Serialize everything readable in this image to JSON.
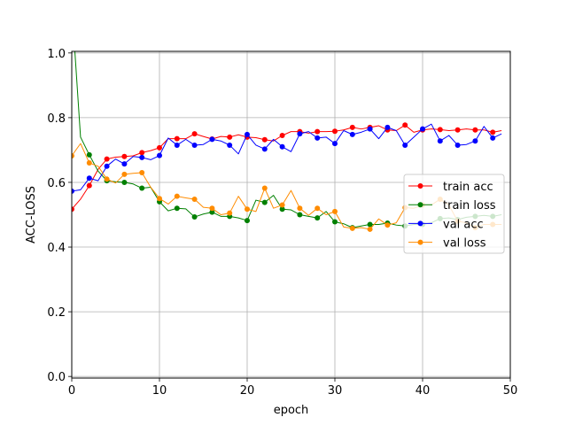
{
  "chart_data": {
    "type": "line",
    "title": "",
    "xlabel": "epoch",
    "ylabel": "ACC-LOSS",
    "xlim": [
      0,
      50
    ],
    "ylim": [
      -0.005,
      1.005
    ],
    "xticks": [
      0,
      10,
      20,
      30,
      40,
      50
    ],
    "yticks": [
      0.0,
      0.2,
      0.4,
      0.6,
      0.8,
      1.0
    ],
    "xtick_labels": [
      "0",
      "10",
      "20",
      "30",
      "40",
      "50"
    ],
    "ytick_labels": [
      "0.0",
      "0.2",
      "0.4",
      "0.6",
      "0.8",
      "1.0"
    ],
    "grid": true,
    "legend_position": "center-right",
    "x": [
      0,
      1,
      2,
      3,
      4,
      5,
      6,
      7,
      8,
      9,
      10,
      11,
      12,
      13,
      14,
      15,
      16,
      17,
      18,
      19,
      20,
      21,
      22,
      23,
      24,
      25,
      26,
      27,
      28,
      29,
      30,
      31,
      32,
      33,
      34,
      35,
      36,
      37,
      38,
      39,
      40,
      41,
      42,
      43,
      44,
      45,
      46,
      47,
      48,
      49
    ],
    "series": [
      {
        "name": "train acc",
        "color": "#ff0000",
        "values": [
          0.517,
          0.548,
          0.59,
          0.64,
          0.672,
          0.678,
          0.68,
          0.682,
          0.692,
          0.698,
          0.707,
          0.735,
          0.735,
          0.735,
          0.75,
          0.742,
          0.734,
          0.742,
          0.74,
          0.747,
          0.74,
          0.738,
          0.732,
          0.728,
          0.745,
          0.757,
          0.757,
          0.752,
          0.757,
          0.757,
          0.758,
          0.762,
          0.77,
          0.765,
          0.77,
          0.775,
          0.762,
          0.76,
          0.777,
          0.755,
          0.762,
          0.765,
          0.763,
          0.76,
          0.762,
          0.765,
          0.762,
          0.762,
          0.755,
          0.76
        ]
      },
      {
        "name": "train loss",
        "color": "#008000",
        "values": [
          1.15,
          0.74,
          0.685,
          0.635,
          0.605,
          0.602,
          0.6,
          0.595,
          0.582,
          0.585,
          0.54,
          0.512,
          0.52,
          0.518,
          0.493,
          0.502,
          0.508,
          0.495,
          0.495,
          0.49,
          0.482,
          0.545,
          0.538,
          0.56,
          0.517,
          0.515,
          0.5,
          0.495,
          0.49,
          0.51,
          0.478,
          0.472,
          0.46,
          0.465,
          0.47,
          0.47,
          0.474,
          0.468,
          0.465,
          0.47,
          0.47,
          0.475,
          0.488,
          0.49,
          0.485,
          0.492,
          0.495,
          0.498,
          0.495,
          0.5
        ]
      },
      {
        "name": "val acc",
        "color": "#0000ff",
        "values": [
          0.573,
          0.577,
          0.613,
          0.605,
          0.65,
          0.672,
          0.657,
          0.68,
          0.677,
          0.67,
          0.683,
          0.737,
          0.715,
          0.733,
          0.715,
          0.717,
          0.733,
          0.728,
          0.715,
          0.688,
          0.748,
          0.715,
          0.703,
          0.733,
          0.71,
          0.695,
          0.75,
          0.757,
          0.737,
          0.74,
          0.72,
          0.76,
          0.748,
          0.755,
          0.765,
          0.735,
          0.77,
          0.76,
          0.715,
          0.74,
          0.765,
          0.78,
          0.728,
          0.745,
          0.715,
          0.717,
          0.728,
          0.773,
          0.737,
          0.75
        ]
      },
      {
        "name": "val loss",
        "color": "#ff8c00",
        "values": [
          0.682,
          0.72,
          0.66,
          0.65,
          0.61,
          0.598,
          0.625,
          0.628,
          0.63,
          0.585,
          0.55,
          0.533,
          0.557,
          0.552,
          0.548,
          0.523,
          0.52,
          0.5,
          0.505,
          0.557,
          0.517,
          0.51,
          0.582,
          0.52,
          0.53,
          0.575,
          0.52,
          0.498,
          0.52,
          0.5,
          0.51,
          0.462,
          0.458,
          0.46,
          0.455,
          0.487,
          0.468,
          0.475,
          0.522,
          0.52,
          0.53,
          0.53,
          0.548,
          0.53,
          0.48,
          0.475,
          0.46,
          0.47,
          0.47,
          0.47
        ]
      }
    ]
  }
}
